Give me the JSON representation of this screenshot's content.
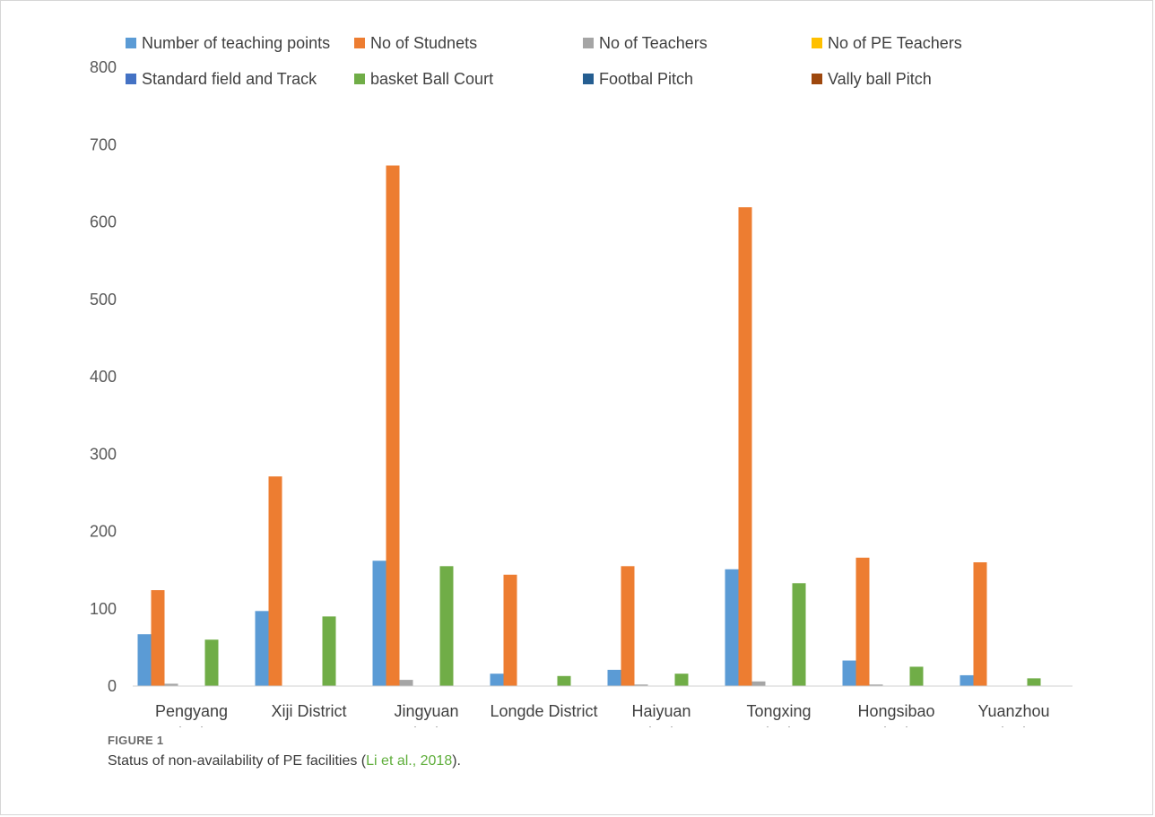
{
  "figure": {
    "label": "FIGURE 1",
    "caption_before": "Status of non-availability of PE facilities (",
    "caption_cite": "Li et al., 2018",
    "caption_after": ")."
  },
  "chart_data": {
    "type": "bar",
    "title": "",
    "xlabel": "",
    "ylabel": "",
    "ylim": [
      0,
      800
    ],
    "yticks": [
      0,
      100,
      200,
      300,
      400,
      500,
      600,
      700,
      800
    ],
    "grid": false,
    "legend_position": "top",
    "categories": [
      [
        "Pengyang",
        "District"
      ],
      [
        "Xiji District"
      ],
      [
        "Jingyuan",
        "District"
      ],
      [
        "Longde District"
      ],
      [
        "Haiyuan",
        "District"
      ],
      [
        "Tongxing",
        "District"
      ],
      [
        "Hongsibao",
        "District"
      ],
      [
        "Yuanzhou",
        "District"
      ]
    ],
    "series": [
      {
        "name": "Number of teaching points",
        "color": "#5b9bd5",
        "values": [
          67,
          97,
          162,
          16,
          21,
          151,
          33,
          14
        ]
      },
      {
        "name": "No of Studnets",
        "color": "#ed7d31",
        "values": [
          124,
          271,
          673,
          144,
          155,
          619,
          166,
          160
        ]
      },
      {
        "name": "No of Teachers",
        "color": "#a5a5a5",
        "values": [
          3,
          0,
          8,
          0,
          2,
          6,
          2,
          0
        ]
      },
      {
        "name": "No of PE Teachers",
        "color": "#ffc000",
        "values": [
          0,
          0,
          0,
          0,
          0,
          0,
          0,
          0
        ]
      },
      {
        "name": "Standard field and Track",
        "color": "#4472c4",
        "values": [
          0,
          0,
          0,
          0,
          0,
          0,
          0,
          0
        ]
      },
      {
        "name": "basket Ball Court",
        "color": "#70ad47",
        "values": [
          60,
          90,
          155,
          13,
          16,
          133,
          25,
          10
        ]
      },
      {
        "name": "Footbal Pitch",
        "color": "#255e91",
        "values": [
          0,
          0,
          0,
          0,
          0,
          0,
          0,
          0
        ]
      },
      {
        "name": "Vally ball Pitch",
        "color": "#9e480e",
        "values": [
          0,
          0,
          0,
          0,
          0,
          0,
          0,
          0
        ]
      }
    ]
  }
}
